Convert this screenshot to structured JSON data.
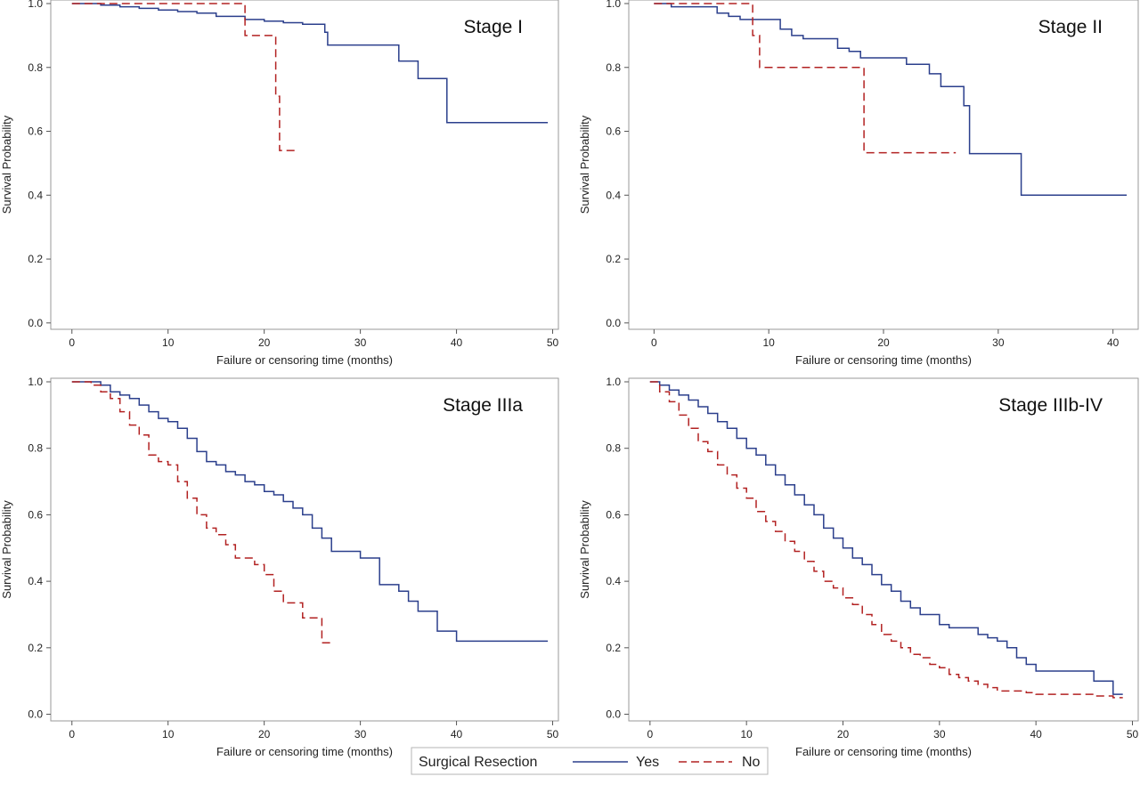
{
  "legend": {
    "title": "Surgical Resection",
    "items": [
      {
        "label": "Yes",
        "color": "#2b3f8c",
        "dash": "solid"
      },
      {
        "label": "No",
        "color": "#b22222",
        "dash": "dashed"
      }
    ]
  },
  "chart_data": [
    {
      "type": "line",
      "title": "Stage I",
      "xlabel": "Failure or censoring time (months)",
      "ylabel": "Survival Probability",
      "xlim": [
        -2.2,
        50.6
      ],
      "ylim": [
        -0.02,
        1.0
      ],
      "xticks": [
        0,
        10,
        20,
        30,
        40,
        50
      ],
      "yticks": [
        0.0,
        0.2,
        0.4,
        0.6,
        0.8,
        1.0
      ],
      "xtick_labels": [
        "0",
        "10",
        "20",
        "30",
        "40",
        "50"
      ],
      "ytick_labels": [
        "0.0",
        "0.2",
        "0.4",
        "0.6",
        "0.8",
        "1.0"
      ],
      "grid": false,
      "series": [
        {
          "name": "Yes",
          "color": "#2b3f8c",
          "dash": "solid",
          "x": [
            0,
            3,
            5,
            7,
            9,
            11,
            13,
            15,
            18,
            20,
            22,
            24,
            26.3,
            26.6,
            34,
            36,
            39,
            49.5
          ],
          "y": [
            1.0,
            0.995,
            0.99,
            0.985,
            0.98,
            0.975,
            0.97,
            0.96,
            0.95,
            0.945,
            0.94,
            0.935,
            0.91,
            0.87,
            0.82,
            0.765,
            0.627,
            0.627
          ]
        },
        {
          "name": "No",
          "color": "#b22222",
          "dash": "dashed",
          "x": [
            0,
            18,
            21.2,
            21.6,
            23.2
          ],
          "y": [
            1.0,
            0.9,
            0.71,
            0.54,
            0.54
          ]
        }
      ]
    },
    {
      "type": "line",
      "title": "Stage II",
      "xlabel": "Failure or censoring time (months)",
      "ylabel": "Survival Probability",
      "xlim": [
        -2.2,
        42.2
      ],
      "ylim": [
        -0.02,
        1.0
      ],
      "xticks": [
        0,
        10,
        20,
        30,
        40
      ],
      "yticks": [
        0.0,
        0.2,
        0.4,
        0.6,
        0.8,
        1.0
      ],
      "xtick_labels": [
        "0",
        "10",
        "20",
        "30",
        "40"
      ],
      "ytick_labels": [
        "0.0",
        "0.2",
        "0.4",
        "0.6",
        "0.8",
        "1.0"
      ],
      "grid": false,
      "series": [
        {
          "name": "Yes",
          "color": "#2b3f8c",
          "dash": "solid",
          "x": [
            0,
            1.5,
            5.5,
            6.5,
            7.5,
            9,
            11,
            12,
            13,
            16,
            17,
            18,
            20,
            22,
            24,
            25,
            27,
            27.5,
            32,
            41.2
          ],
          "y": [
            1.0,
            0.99,
            0.97,
            0.96,
            0.95,
            0.95,
            0.92,
            0.9,
            0.89,
            0.86,
            0.85,
            0.83,
            0.83,
            0.81,
            0.78,
            0.74,
            0.68,
            0.53,
            0.4,
            0.4
          ]
        },
        {
          "name": "No",
          "color": "#b22222",
          "dash": "dashed",
          "x": [
            0,
            8.6,
            9.2,
            18.3,
            26.3
          ],
          "y": [
            1.0,
            0.9,
            0.8,
            0.533,
            0.533
          ]
        }
      ]
    },
    {
      "type": "line",
      "title": "Stage IIIa",
      "xlabel": "Failure or censoring time (months)",
      "ylabel": "Survival Probability",
      "xlim": [
        -2.2,
        50.6
      ],
      "ylim": [
        -0.02,
        1.0
      ],
      "xticks": [
        0,
        10,
        20,
        30,
        40,
        50
      ],
      "yticks": [
        0.0,
        0.2,
        0.4,
        0.6,
        0.8,
        1.0
      ],
      "xtick_labels": [
        "0",
        "10",
        "20",
        "30",
        "40",
        "50"
      ],
      "ytick_labels": [
        "0.0",
        "0.2",
        "0.4",
        "0.6",
        "0.8",
        "1.0"
      ],
      "grid": false,
      "series": [
        {
          "name": "Yes",
          "color": "#2b3f8c",
          "dash": "solid",
          "x": [
            0,
            3,
            4,
            5,
            6,
            7,
            8,
            9,
            10,
            11,
            12,
            13,
            14,
            15,
            16,
            17,
            18,
            19,
            20,
            21,
            22,
            23,
            24,
            25,
            26,
            27,
            28,
            30,
            32,
            34,
            35,
            36,
            38,
            40,
            41,
            49.5
          ],
          "y": [
            1.0,
            0.99,
            0.97,
            0.96,
            0.95,
            0.93,
            0.91,
            0.89,
            0.88,
            0.86,
            0.83,
            0.79,
            0.76,
            0.75,
            0.73,
            0.72,
            0.7,
            0.69,
            0.67,
            0.66,
            0.64,
            0.62,
            0.6,
            0.56,
            0.53,
            0.49,
            0.49,
            0.47,
            0.39,
            0.37,
            0.34,
            0.31,
            0.25,
            0.22,
            0.22,
            0.22
          ]
        },
        {
          "name": "No",
          "color": "#b22222",
          "dash": "dashed",
          "x": [
            0,
            2,
            3,
            4,
            5,
            6,
            7,
            8,
            9,
            10,
            11,
            12,
            13,
            14,
            15,
            16,
            17,
            18,
            19,
            20,
            21,
            22,
            24,
            26,
            27
          ],
          "y": [
            1.0,
            0.99,
            0.97,
            0.95,
            0.91,
            0.87,
            0.84,
            0.78,
            0.76,
            0.75,
            0.7,
            0.65,
            0.6,
            0.56,
            0.54,
            0.51,
            0.47,
            0.47,
            0.45,
            0.42,
            0.37,
            0.335,
            0.29,
            0.215,
            0.215
          ]
        }
      ]
    },
    {
      "type": "line",
      "title": "Stage IIIb-IV",
      "xlabel": "Failure or censoring time (months)",
      "ylabel": "Survival Probability",
      "xlim": [
        -2.2,
        50.6
      ],
      "ylim": [
        -0.02,
        1.0
      ],
      "xticks": [
        0,
        10,
        20,
        30,
        40,
        50
      ],
      "yticks": [
        0.0,
        0.2,
        0.4,
        0.6,
        0.8,
        1.0
      ],
      "xtick_labels": [
        "0",
        "10",
        "20",
        "30",
        "40",
        "50"
      ],
      "ytick_labels": [
        "0.0",
        "0.2",
        "0.4",
        "0.6",
        "0.8",
        "1.0"
      ],
      "grid": false,
      "series": [
        {
          "name": "Yes",
          "color": "#2b3f8c",
          "dash": "solid",
          "x": [
            0,
            1,
            2,
            3,
            4,
            5,
            6,
            7,
            8,
            9,
            10,
            11,
            12,
            13,
            14,
            15,
            16,
            17,
            18,
            19,
            20,
            21,
            22,
            23,
            24,
            25,
            26,
            27,
            28,
            29,
            30,
            31,
            32,
            33,
            34,
            35,
            36,
            37,
            38,
            39,
            40,
            42,
            44,
            46,
            47,
            48,
            49
          ],
          "y": [
            1.0,
            0.99,
            0.975,
            0.96,
            0.945,
            0.925,
            0.905,
            0.88,
            0.86,
            0.83,
            0.8,
            0.78,
            0.75,
            0.72,
            0.69,
            0.66,
            0.63,
            0.6,
            0.56,
            0.53,
            0.5,
            0.47,
            0.45,
            0.42,
            0.39,
            0.37,
            0.34,
            0.32,
            0.3,
            0.3,
            0.27,
            0.26,
            0.26,
            0.26,
            0.24,
            0.23,
            0.22,
            0.2,
            0.17,
            0.15,
            0.13,
            0.13,
            0.13,
            0.1,
            0.1,
            0.06,
            0.06
          ]
        },
        {
          "name": "No",
          "color": "#b22222",
          "dash": "dashed",
          "x": [
            0,
            1,
            2,
            3,
            4,
            5,
            6,
            7,
            8,
            9,
            10,
            11,
            12,
            13,
            14,
            15,
            16,
            17,
            18,
            19,
            20,
            21,
            22,
            23,
            24,
            25,
            26,
            27,
            28,
            29,
            30,
            31,
            32,
            33,
            34,
            35,
            36,
            37,
            38,
            39,
            40,
            42,
            44,
            46,
            48,
            49
          ],
          "y": [
            1.0,
            0.97,
            0.94,
            0.9,
            0.86,
            0.82,
            0.79,
            0.75,
            0.72,
            0.68,
            0.65,
            0.61,
            0.58,
            0.55,
            0.52,
            0.49,
            0.46,
            0.43,
            0.4,
            0.38,
            0.35,
            0.33,
            0.3,
            0.27,
            0.24,
            0.22,
            0.2,
            0.18,
            0.17,
            0.15,
            0.14,
            0.12,
            0.11,
            0.1,
            0.09,
            0.08,
            0.07,
            0.07,
            0.07,
            0.065,
            0.06,
            0.06,
            0.06,
            0.055,
            0.05,
            0.05
          ]
        }
      ]
    }
  ]
}
